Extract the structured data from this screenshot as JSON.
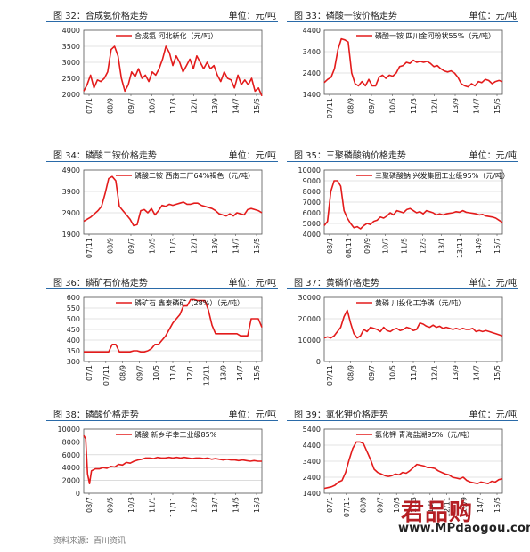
{
  "panels": [
    {
      "caption": "图 32：合成氨价格走势",
      "unit": "单位：元/吨",
      "chart_data": {
        "type": "line",
        "title": "合成氨 河北新化（元/吨）",
        "ylim": [
          2000,
          4000
        ],
        "yticks": [
          2000,
          2500,
          3000,
          3500,
          4000
        ],
        "xlabels": [
          "07/1",
          "08/9",
          "09/7",
          "10/5",
          "11/3",
          "12/1",
          "13/9",
          "14/7",
          "15/5"
        ],
        "x": [
          0,
          2,
          4,
          6,
          8,
          10,
          12,
          14,
          16,
          18,
          20,
          22,
          24,
          26,
          28,
          30,
          32,
          34,
          36,
          38,
          40,
          42,
          44,
          46,
          48,
          50,
          52,
          54,
          56,
          58,
          60,
          62,
          64,
          66,
          68,
          70,
          72,
          74,
          76,
          78,
          80,
          82,
          84,
          86,
          88,
          90,
          92,
          94,
          96,
          98,
          100,
          102,
          104
        ],
        "values": [
          2100,
          2300,
          2600,
          2200,
          2450,
          2400,
          2500,
          2700,
          3400,
          3500,
          3200,
          2500,
          2100,
          2300,
          2700,
          2550,
          2800,
          2500,
          2600,
          2400,
          2700,
          2600,
          2800,
          3100,
          3500,
          3300,
          2900,
          3200,
          3000,
          2700,
          2900,
          3100,
          2800,
          3200,
          3000,
          2800,
          3000,
          2800,
          2900,
          2600,
          2400,
          2700,
          2500,
          2450,
          2200,
          2600,
          2300,
          2450,
          2300,
          2500,
          2100,
          2200,
          1950
        ]
      }
    },
    {
      "caption": "图 33：磷酸一铵价格走势",
      "unit": "单位：元/吨",
      "chart_data": {
        "type": "line",
        "title": "磷酸一铵 四川金河粉状55%（元/吨）",
        "ylim": [
          1400,
          4400
        ],
        "yticks": [
          1400,
          2400,
          3400,
          4400
        ],
        "xlabels": [
          "07/11",
          "08/9",
          "09/7",
          "10/5",
          "11/3",
          "12/1",
          "13/9",
          "14/7",
          "15/5"
        ],
        "x": [
          0,
          2,
          4,
          6,
          8,
          10,
          12,
          14,
          16,
          18,
          20,
          22,
          24,
          26,
          28,
          30,
          32,
          34,
          36,
          38,
          40,
          42,
          44,
          46,
          48,
          50,
          52,
          54,
          56,
          58,
          60,
          62,
          64,
          66,
          68,
          70,
          72,
          74,
          76,
          78,
          80,
          82,
          84,
          86,
          88,
          90,
          92,
          94,
          96,
          98,
          100,
          102,
          104
        ],
        "values": [
          1950,
          2100,
          2200,
          2600,
          3500,
          4000,
          3950,
          3850,
          2400,
          1900,
          1800,
          2000,
          1800,
          2100,
          1800,
          1800,
          2200,
          2300,
          2150,
          2300,
          2250,
          2400,
          2700,
          2750,
          2900,
          2850,
          3000,
          2900,
          2950,
          2900,
          2950,
          2850,
          2700,
          2750,
          2600,
          2500,
          2450,
          2500,
          2400,
          2200,
          1900,
          1800,
          1750,
          1900,
          1800,
          2000,
          1950,
          2100,
          2050,
          1900,
          2000,
          2050,
          2000
        ]
      }
    },
    {
      "caption": "图 34：磷酸二铵价格走势",
      "unit": "单位：元/吨",
      "chart_data": {
        "type": "line",
        "title": "磷酸二铵 西南工厂64%褐色（元/吨）",
        "ylim": [
          1900,
          4900
        ],
        "yticks": [
          1900,
          2900,
          3900,
          4900
        ],
        "xlabels": [
          "07/11",
          "08/9",
          "09/7",
          "10/5",
          "11/3",
          "12/1",
          "13/9",
          "14/7",
          "15/5"
        ],
        "x": [
          0,
          2,
          4,
          6,
          8,
          10,
          12,
          14,
          16,
          18,
          20,
          22,
          24,
          26,
          28,
          30,
          32,
          34,
          36,
          38,
          40,
          42,
          44,
          46,
          48,
          50,
          52,
          54,
          56,
          58,
          60,
          62,
          64,
          66,
          68,
          70,
          72,
          74,
          76,
          78,
          80,
          82,
          84,
          86,
          88,
          90,
          92,
          94,
          96,
          98,
          100
        ],
        "values": [
          2500,
          2600,
          2700,
          2850,
          3000,
          3200,
          3800,
          4500,
          4600,
          4400,
          3200,
          3000,
          2800,
          2600,
          2300,
          2350,
          3000,
          3050,
          2900,
          3100,
          2800,
          3000,
          3250,
          3200,
          3300,
          3250,
          3300,
          3350,
          3400,
          3300,
          3300,
          3350,
          3350,
          3250,
          3200,
          3150,
          3100,
          3000,
          2850,
          2800,
          2750,
          2850,
          2750,
          2900,
          2850,
          2800,
          3050,
          3100,
          3050,
          3000,
          2900
        ]
      }
    },
    {
      "caption": "图 35：三聚磷酸钠价格走势",
      "unit": "单位：元/吨",
      "chart_data": {
        "type": "line",
        "title": "三聚磷酸钠 兴发集团工业级95%（元/吨）",
        "ylim": [
          4000,
          10000
        ],
        "yticks": [
          4000,
          5000,
          6000,
          7000,
          8000,
          9000,
          10000
        ],
        "xlabels": [
          "08/1",
          "08/11",
          "09/9",
          "10/7",
          "11/5",
          "12/3",
          "13/1",
          "13/11",
          "14/9",
          "15/7"
        ],
        "x": [
          0,
          2,
          4,
          6,
          8,
          10,
          12,
          14,
          16,
          18,
          20,
          22,
          24,
          26,
          28,
          30,
          32,
          34,
          36,
          38,
          40,
          42,
          44,
          46,
          48,
          50,
          52,
          54,
          56,
          58,
          60,
          62,
          64,
          66,
          68,
          70,
          72,
          74,
          76,
          78,
          80,
          82,
          84,
          86,
          88,
          90,
          92,
          94,
          96,
          98,
          100,
          102,
          104,
          106,
          108
        ],
        "values": [
          4800,
          5200,
          8000,
          9000,
          9000,
          8500,
          6200,
          5500,
          5000,
          4600,
          4700,
          4500,
          4800,
          5000,
          4900,
          5200,
          5300,
          5600,
          5500,
          5700,
          6000,
          5800,
          6200,
          6100,
          6000,
          6300,
          6400,
          6200,
          6000,
          6100,
          5900,
          6200,
          6100,
          6000,
          5800,
          5900,
          5800,
          5900,
          5950,
          6000,
          6100,
          6050,
          6200,
          6050,
          6000,
          5950,
          5900,
          5800,
          5850,
          5700,
          5650,
          5600,
          5500,
          5300,
          5100
        ]
      }
    },
    {
      "caption": "图 36：磷矿石价格走势",
      "unit": "单位：元/吨",
      "chart_data": {
        "type": "line",
        "title": "磷矿石 鑫泰磷矿（28%）（元/吨）",
        "ylim": [
          300,
          600
        ],
        "yticks": [
          300,
          350,
          400,
          450,
          500,
          550,
          600
        ],
        "xlabels": [
          "07/1",
          "07/11",
          "08/9",
          "09/7",
          "10/5",
          "11/3",
          "12/1",
          "12/11",
          "13/9",
          "14/7",
          "15/5"
        ],
        "x": [
          0,
          2,
          4,
          6,
          8,
          10,
          12,
          14,
          16,
          18,
          20,
          22,
          24,
          26,
          28,
          30,
          32,
          34,
          36,
          38,
          40,
          42,
          44,
          46,
          48,
          50,
          52,
          54,
          56,
          58,
          60,
          62,
          64,
          66,
          68,
          70,
          72,
          74,
          76,
          78,
          80,
          82,
          84,
          86,
          88,
          90,
          92,
          94,
          96,
          98,
          100
        ],
        "values": [
          345,
          345,
          345,
          345,
          345,
          345,
          345,
          345,
          380,
          380,
          345,
          345,
          345,
          345,
          350,
          350,
          345,
          345,
          350,
          360,
          380,
          380,
          400,
          420,
          450,
          480,
          500,
          520,
          560,
          560,
          590,
          590,
          585,
          585,
          585,
          540,
          470,
          430,
          430,
          430,
          430,
          430,
          430,
          430,
          420,
          420,
          420,
          500,
          500,
          500,
          460
        ]
      }
    },
    {
      "caption": "图 37：黄磷价格走势",
      "unit": "单位：元/吨",
      "chart_data": {
        "type": "line",
        "title": "黄磷 川投化工净磷（元/吨）",
        "ylim": [
          0,
          30000
        ],
        "yticks": [
          0,
          10000,
          20000,
          30000
        ],
        "xlabels": [
          "07/11",
          "08/9",
          "09/7",
          "10/5",
          "11/3",
          "12/1",
          "13/9",
          "14/7",
          "15/5"
        ],
        "x": [
          0,
          2,
          4,
          6,
          8,
          10,
          12,
          14,
          16,
          18,
          20,
          22,
          24,
          26,
          28,
          30,
          32,
          34,
          36,
          38,
          40,
          42,
          44,
          46,
          48,
          50,
          52,
          54,
          56,
          58,
          60,
          62,
          64,
          66,
          68,
          70,
          72,
          74,
          76,
          78,
          80,
          82,
          84,
          86,
          88,
          90,
          92,
          94,
          96,
          98,
          100,
          102,
          104,
          106,
          108
        ],
        "values": [
          11000,
          11500,
          11000,
          12000,
          14000,
          16000,
          21000,
          24000,
          18000,
          13000,
          11000,
          12000,
          15000,
          14000,
          16000,
          15500,
          15000,
          14000,
          16000,
          14500,
          14000,
          15000,
          15500,
          14500,
          15000,
          16000,
          15500,
          14500,
          15000,
          18000,
          17500,
          16500,
          16000,
          17000,
          16000,
          16500,
          15500,
          16000,
          15500,
          15000,
          15500,
          15000,
          15500,
          15000,
          15000,
          15500,
          14000,
          14500,
          14000,
          14500,
          14000,
          13500,
          13000,
          12500,
          12000
        ]
      }
    },
    {
      "caption": "图 38：磷酸价格走势",
      "unit": "单位：元/吨",
      "chart_data": {
        "type": "line",
        "title": "磷酸 新乡华幸工业级85%",
        "ylim": [
          0,
          10000
        ],
        "yticks": [
          0,
          2000,
          4000,
          6000,
          8000,
          10000
        ],
        "xlabels": [
          "08/7",
          "09/5",
          "10/3",
          "11/1",
          "11/11",
          "12/9",
          "13/7",
          "14/5",
          "15/3"
        ],
        "x": [
          0,
          1,
          2,
          3,
          4,
          6,
          8,
          10,
          12,
          14,
          16,
          18,
          20,
          22,
          24,
          26,
          28,
          30,
          32,
          34,
          36,
          38,
          40,
          42,
          44,
          46,
          48,
          50,
          52,
          54,
          56,
          58,
          60,
          62,
          64,
          66,
          68,
          70,
          72,
          74,
          76,
          78,
          80,
          82,
          84,
          86,
          88,
          90,
          92
        ],
        "values": [
          9000,
          8500,
          3000,
          1500,
          3500,
          3800,
          3800,
          4000,
          3900,
          4200,
          4100,
          4500,
          4400,
          4800,
          4700,
          5000,
          5200,
          5300,
          5500,
          5500,
          5400,
          5600,
          5500,
          5500,
          5600,
          5500,
          5600,
          5500,
          5600,
          5500,
          5400,
          5500,
          5500,
          5400,
          5500,
          5300,
          5400,
          5300,
          5200,
          5300,
          5200,
          5200,
          5100,
          5200,
          5100,
          5000,
          5100,
          5000,
          5000
        ]
      }
    },
    {
      "caption": "图 39：氯化钾价格走势",
      "unit": "单位：元/吨",
      "chart_data": {
        "type": "line",
        "title": "氯化钾 青海盐湖95%（元/吨）",
        "ylim": [
          1400,
          5400
        ],
        "yticks": [
          1400,
          2400,
          3400,
          4400,
          5400
        ],
        "xlabels": [
          "07/1",
          "07/11",
          "08/9",
          "09/7",
          "10/5",
          "11/3",
          "12/1",
          "12/11",
          "13/9",
          "14/7",
          "15/5"
        ],
        "x": [
          0,
          2,
          4,
          6,
          8,
          10,
          12,
          14,
          16,
          18,
          20,
          22,
          24,
          26,
          28,
          30,
          32,
          34,
          36,
          38,
          40,
          42,
          44,
          46,
          48,
          50,
          52,
          54,
          56,
          58,
          60,
          62,
          64,
          66,
          68,
          70,
          72,
          74,
          76,
          78,
          80,
          82,
          84,
          86,
          88,
          90,
          92,
          94,
          96,
          98,
          100
        ],
        "values": [
          1700,
          1750,
          1800,
          1900,
          2100,
          2200,
          2700,
          3500,
          4200,
          4600,
          4600,
          4500,
          4000,
          3500,
          2900,
          2700,
          2600,
          2500,
          2450,
          2500,
          2600,
          2550,
          2700,
          2650,
          2800,
          3000,
          3200,
          3150,
          3100,
          3000,
          3000,
          2950,
          2800,
          2700,
          2600,
          2550,
          2400,
          2350,
          2300,
          2400,
          2200,
          2100,
          2050,
          2000,
          2100,
          2050,
          2000,
          2150,
          2100,
          2250,
          2300
        ]
      }
    }
  ],
  "footer": "资料来源：百川资讯",
  "watermark": {
    "logo": "君品购",
    "url": "www.MPdaogou.com"
  },
  "colors": {
    "line": "#e31b1b",
    "header_rule": "#2a6aa8",
    "logo": "#b51f24"
  }
}
